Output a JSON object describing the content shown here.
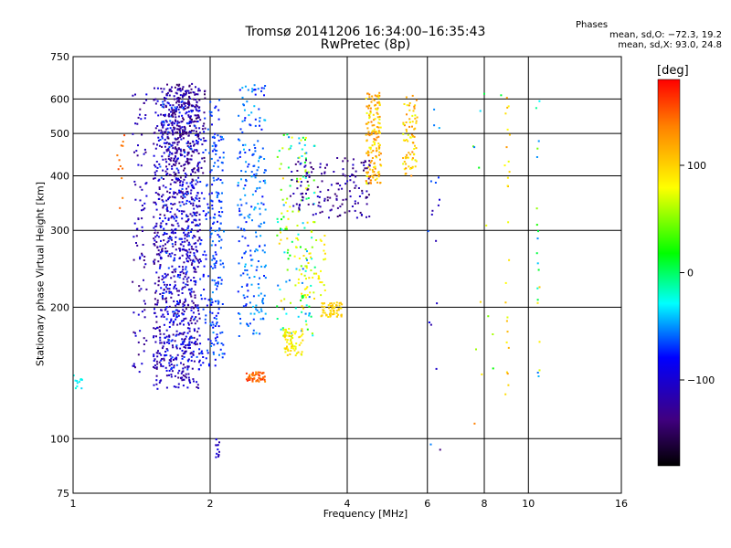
{
  "header": {
    "title_line1": "Tromsø 20141206 16:34:00–16:35:43",
    "title_line2": "RwPretec (8p)"
  },
  "stats": {
    "title": "Phases",
    "o_line": "mean, sd,O: −72.3, 19.2",
    "x_line": "mean, sd,X:  93.0, 24.8"
  },
  "colorbar": {
    "unit": "[deg]",
    "ticks": [
      100,
      0,
      -100
    ],
    "range": [
      -180,
      180
    ]
  },
  "chart_data": {
    "type": "scatter",
    "xlabel": "Frequency [MHz]",
    "ylabel": "Stationary phase Virtual Height [km]",
    "xscale": "log",
    "yscale": "log",
    "xlim": [
      1,
      16
    ],
    "ylim": [
      75,
      750
    ],
    "xticks": [
      1,
      2,
      4,
      6,
      8,
      10,
      16
    ],
    "yticks": [
      75,
      100,
      200,
      300,
      400,
      500,
      600,
      750
    ],
    "grid": true,
    "color_encoding": "phase [deg]",
    "clusters": [
      {
        "freq": [
          1.5,
          1.9
        ],
        "height": [
          130,
          640
        ],
        "phase": [
          -140,
          -90
        ],
        "n": 900
      },
      {
        "freq": [
          1.55,
          2.1
        ],
        "height": [
          140,
          600
        ],
        "phase": [
          -90,
          -60
        ],
        "n": 350
      },
      {
        "freq": [
          2.0,
          2.15
        ],
        "height": [
          150,
          500
        ],
        "phase": [
          -80,
          -50
        ],
        "n": 120
      },
      {
        "freq": [
          2.3,
          2.65
        ],
        "height": [
          170,
          650
        ],
        "phase": [
          -80,
          -40
        ],
        "n": 230
      },
      {
        "freq": [
          1.35,
          1.45
        ],
        "height": [
          140,
          620
        ],
        "phase": [
          -140,
          -90
        ],
        "n": 90
      },
      {
        "freq": [
          1.6,
          1.95
        ],
        "height": [
          400,
          650
        ],
        "phase": [
          -150,
          -110
        ],
        "n": 200
      },
      {
        "freq": [
          2.8,
          3.4
        ],
        "height": [
          170,
          500
        ],
        "phase": [
          -70,
          100
        ],
        "n": 170
      },
      {
        "freq": [
          2.9,
          3.2
        ],
        "height": [
          155,
          180
        ],
        "phase": [
          70,
          105
        ],
        "n": 70
      },
      {
        "freq": [
          2.4,
          2.65
        ],
        "height": [
          135,
          142
        ],
        "phase": [
          130,
          170
        ],
        "n": 50
      },
      {
        "freq": [
          3.5,
          3.9
        ],
        "height": [
          190,
          205
        ],
        "phase": [
          90,
          110
        ],
        "n": 60
      },
      {
        "freq": [
          3.2,
          3.6
        ],
        "height": [
          210,
          300
        ],
        "phase": [
          60,
          100
        ],
        "n": 40
      },
      {
        "freq": [
          4.4,
          4.75
        ],
        "height": [
          380,
          620
        ],
        "phase": [
          70,
          140
        ],
        "n": 160
      },
      {
        "freq": [
          5.3,
          5.7
        ],
        "height": [
          400,
          610
        ],
        "phase": [
          70,
          140
        ],
        "n": 80
      },
      {
        "freq": [
          3.0,
          4.5
        ],
        "height": [
          320,
          440
        ],
        "phase": [
          -150,
          -100
        ],
        "n": 150
      },
      {
        "freq": [
          1.0,
          1.05
        ],
        "height": [
          130,
          140
        ],
        "phase": [
          -40,
          -20
        ],
        "n": 12
      },
      {
        "freq": [
          1.25,
          1.3
        ],
        "height": [
          330,
          520
        ],
        "phase": [
          130,
          160
        ],
        "n": 12
      },
      {
        "freq": [
          2.05,
          2.1
        ],
        "height": [
          90,
          100
        ],
        "phase": [
          -120,
          -90
        ],
        "n": 12
      },
      {
        "freq": [
          8.9,
          9.1
        ],
        "height": [
          100,
          610
        ],
        "phase": [
          70,
          140
        ],
        "n": 25
      },
      {
        "freq": [
          10.4,
          10.6
        ],
        "height": [
          120,
          600
        ],
        "phase": [
          -60,
          110
        ],
        "n": 20
      },
      {
        "freq": [
          6.0,
          6.4
        ],
        "height": [
          90,
          660
        ],
        "phase": [
          -140,
          -40
        ],
        "n": 18
      },
      {
        "freq": [
          7.5,
          9.5
        ],
        "height": [
          85,
          650
        ],
        "phase": [
          -60,
          160
        ],
        "n": 15
      }
    ]
  }
}
